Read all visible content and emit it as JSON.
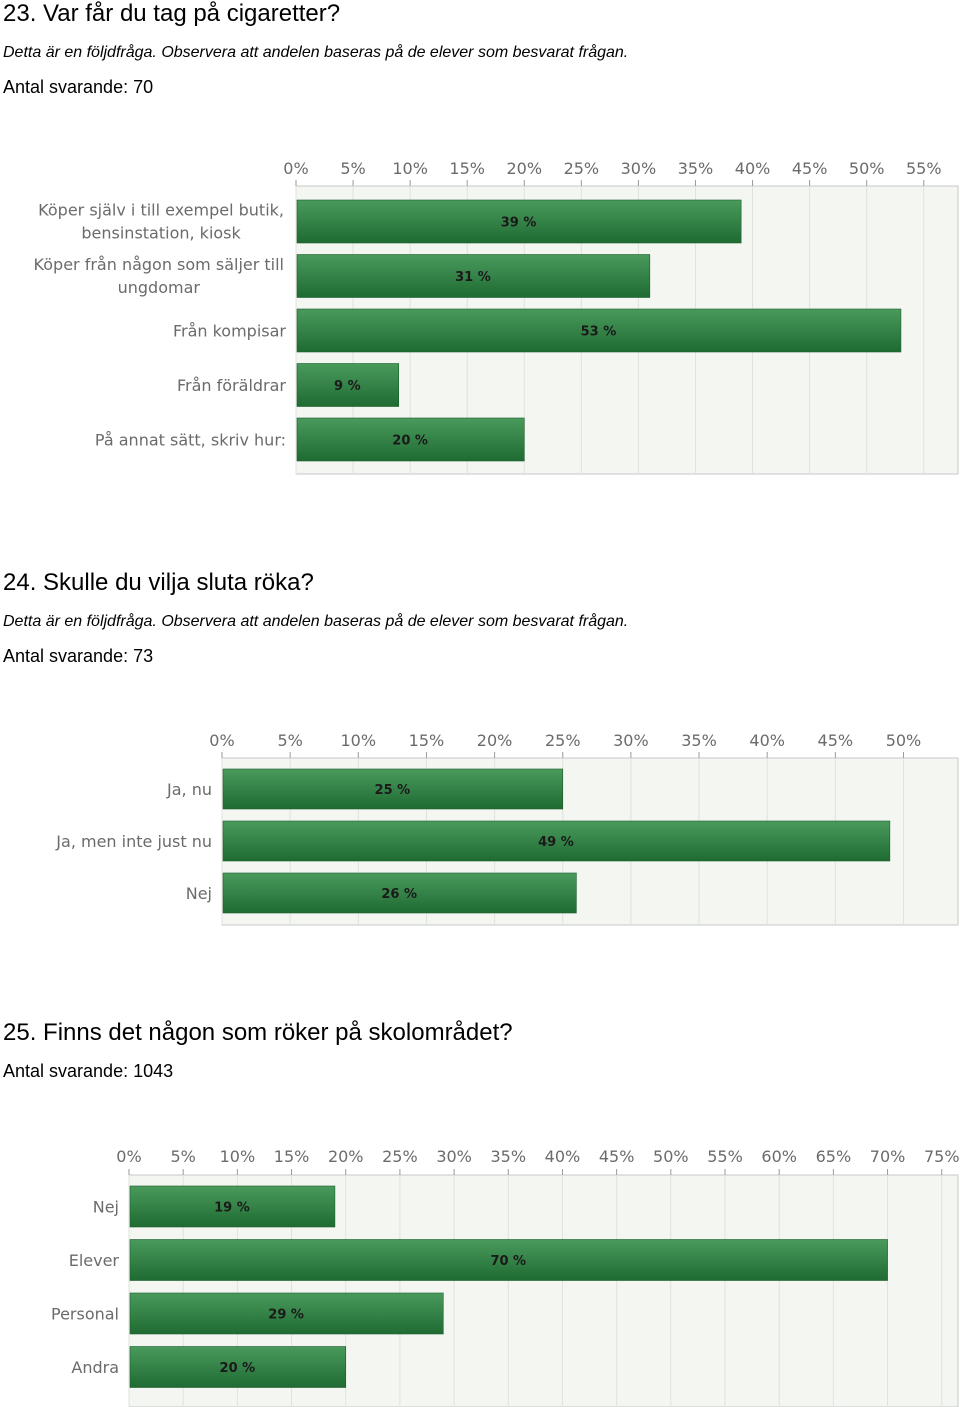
{
  "q23": {
    "title": "23. Var får du tag på cigaretter?",
    "note": "Detta är en följdfråga. Observera att andelen baseras på de elever som besvarat frågan.",
    "count": "Antal svarande: 70"
  },
  "q24": {
    "title": "24. Skulle du vilja sluta röka?",
    "note": "Detta är en följdfråga. Observera att andelen baseras på de elever som besvarat frågan.",
    "count": "Antal svarande: 73"
  },
  "q25": {
    "title": "25. Finns det någon som röker på skolområdet?",
    "count": "Antal svarande: 1043"
  },
  "colors": {
    "bar_top": "#4a9a5c",
    "bar_bottom": "#1f6b33",
    "plot_bg": "#f4f6f2",
    "axis": "#9a9a9a"
  },
  "chart_data": [
    {
      "type": "bar",
      "orientation": "horizontal",
      "categories": [
        [
          "Köper själv i till exempel butik,",
          "bensinstation, kiosk"
        ],
        [
          "Köper från någon som säljer till",
          "ungdomar"
        ],
        [
          "Från kompisar"
        ],
        [
          "Från föräldrar"
        ],
        [
          "På annat sätt, skriv hur:"
        ]
      ],
      "values": [
        39,
        31,
        53,
        9,
        20
      ],
      "value_labels": [
        "39 %",
        "31 %",
        "53 %",
        "9 %",
        "20 %"
      ],
      "xlim": [
        0,
        58
      ],
      "ticks": [
        0,
        5,
        10,
        15,
        20,
        25,
        30,
        35,
        40,
        45,
        50,
        55
      ],
      "tick_labels": [
        "0%",
        "5%",
        "10%",
        "15%",
        "20%",
        "25%",
        "30%",
        "35%",
        "40%",
        "45%",
        "50%",
        "55%"
      ],
      "grid": true
    },
    {
      "type": "bar",
      "orientation": "horizontal",
      "categories": [
        [
          "Ja, nu"
        ],
        [
          "Ja, men inte just nu"
        ],
        [
          "Nej"
        ]
      ],
      "values": [
        25,
        49,
        26
      ],
      "value_labels": [
        "25 %",
        "49 %",
        "26 %"
      ],
      "xlim": [
        0,
        54
      ],
      "ticks": [
        0,
        5,
        10,
        15,
        20,
        25,
        30,
        35,
        40,
        45,
        50
      ],
      "tick_labels": [
        "0%",
        "5%",
        "10%",
        "15%",
        "20%",
        "25%",
        "30%",
        "35%",
        "40%",
        "45%",
        "50%"
      ],
      "grid": true
    },
    {
      "type": "bar",
      "orientation": "horizontal",
      "categories": [
        [
          "Nej"
        ],
        [
          "Elever"
        ],
        [
          "Personal"
        ],
        [
          "Andra"
        ]
      ],
      "values": [
        19,
        70,
        29,
        20
      ],
      "value_labels": [
        "19 %",
        "70 %",
        "29 %",
        "20 %"
      ],
      "xlim": [
        0,
        76.5
      ],
      "ticks": [
        0,
        5,
        10,
        15,
        20,
        25,
        30,
        35,
        40,
        45,
        50,
        55,
        60,
        65,
        70,
        75
      ],
      "tick_labels": [
        "0%",
        "5%",
        "10%",
        "15%",
        "20%",
        "25%",
        "30%",
        "35%",
        "40%",
        "45%",
        "50%",
        "55%",
        "60%",
        "65%",
        "70%",
        "75%"
      ],
      "grid": true
    }
  ]
}
